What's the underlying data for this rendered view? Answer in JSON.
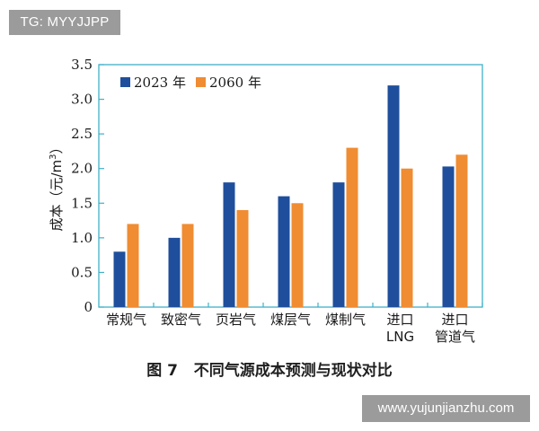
{
  "watermark_top": "TG: MYYJJPP",
  "watermark_bottom": "www.yujunjianzhu.com",
  "figure_caption": "图 7   不同气源成本预测与现状对比",
  "colors": {
    "series_2023": "#1f4f9c",
    "series_2060": "#f08c32",
    "axis": "#3fb0c8",
    "badge_bg": "#9b9b9b"
  },
  "chart_data": {
    "type": "bar",
    "ylabel": "成本（元/m³）",
    "ylabel_main": "成本（元/m",
    "ylabel_sup": "3",
    "ylabel_end": "）",
    "ylim": [
      0,
      3.5
    ],
    "yticks": [
      "0",
      "0.5",
      "1.0",
      "1.5",
      "2.0",
      "2.5",
      "3.0",
      "3.5"
    ],
    "ytick_values": [
      0,
      0.5,
      1.0,
      1.5,
      2.0,
      2.5,
      3.0,
      3.5
    ],
    "categories": [
      [
        "常规气"
      ],
      [
        "致密气"
      ],
      [
        "页岩气"
      ],
      [
        "煤层气"
      ],
      [
        "煤制气"
      ],
      [
        "进口",
        "LNG"
      ],
      [
        "进口",
        "管道气"
      ]
    ],
    "series": [
      {
        "name": "2023 年",
        "values": [
          0.8,
          1.0,
          1.8,
          1.6,
          1.8,
          3.2,
          2.03
        ]
      },
      {
        "name": "2060 年",
        "values": [
          1.2,
          1.2,
          1.4,
          1.5,
          2.3,
          2.0,
          2.2
        ]
      }
    ],
    "legend_position": "top-left",
    "grid": false
  }
}
